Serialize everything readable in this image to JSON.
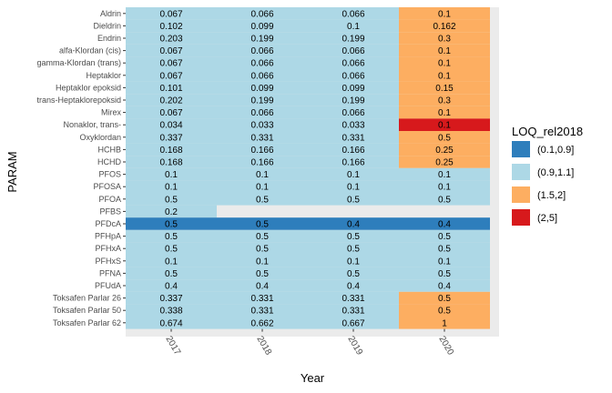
{
  "chart_data": {
    "type": "heatmap",
    "xlabel": "Year",
    "ylabel": "PARAM",
    "x": [
      "2017",
      "2018",
      "2019",
      "2020"
    ],
    "y": [
      "Aldrin",
      "Dieldrin",
      "Endrin",
      "alfa-Klordan (cis)",
      "gamma-Klordan (trans)",
      "Heptaklor",
      "Heptaklor epoksid",
      "trans-Heptaklorepoksid",
      "Mirex",
      "Nonaklor, trans-",
      "Oxyklordan",
      "HCHB",
      "HCHD",
      "PFOS",
      "PFOSA",
      "PFOA",
      "PFBS",
      "PFDcA",
      "PFHpA",
      "PFHxA",
      "PFHxS",
      "PFNA",
      "PFUdA",
      "Toksafen Parlar 26",
      "Toksafen Parlar 50",
      "Toksafen Parlar 62"
    ],
    "cells": [
      [
        "0.067",
        "0.066",
        "0.066",
        "0.1"
      ],
      [
        "0.102",
        "0.099",
        "0.1",
        "0.162"
      ],
      [
        "0.203",
        "0.199",
        "0.199",
        "0.3"
      ],
      [
        "0.067",
        "0.066",
        "0.066",
        "0.1"
      ],
      [
        "0.067",
        "0.066",
        "0.066",
        "0.1"
      ],
      [
        "0.067",
        "0.066",
        "0.066",
        "0.1"
      ],
      [
        "0.101",
        "0.099",
        "0.099",
        "0.15"
      ],
      [
        "0.202",
        "0.199",
        "0.199",
        "0.3"
      ],
      [
        "0.067",
        "0.066",
        "0.066",
        "0.1"
      ],
      [
        "0.034",
        "0.033",
        "0.033",
        "0.1"
      ],
      [
        "0.337",
        "0.331",
        "0.331",
        "0.5"
      ],
      [
        "0.168",
        "0.166",
        "0.166",
        "0.25"
      ],
      [
        "0.168",
        "0.166",
        "0.166",
        "0.25"
      ],
      [
        "0.1",
        "0.1",
        "0.1",
        "0.1"
      ],
      [
        "0.1",
        "0.1",
        "0.1",
        "0.1"
      ],
      [
        "0.5",
        "0.5",
        "0.5",
        "0.5"
      ],
      [
        "0.2",
        null,
        null,
        null
      ],
      [
        "0.5",
        "0.5",
        "0.4",
        "0.4"
      ],
      [
        "0.5",
        "0.5",
        "0.5",
        "0.5"
      ],
      [
        "0.5",
        "0.5",
        "0.5",
        "0.5"
      ],
      [
        "0.1",
        "0.1",
        "0.1",
        "0.1"
      ],
      [
        "0.5",
        "0.5",
        "0.5",
        "0.5"
      ],
      [
        "0.4",
        "0.4",
        "0.4",
        "0.4"
      ],
      [
        "0.337",
        "0.331",
        "0.331",
        "0.5"
      ],
      [
        "0.338",
        "0.331",
        "0.331",
        "0.5"
      ],
      [
        "0.674",
        "0.662",
        "0.667",
        "1"
      ]
    ],
    "categories_grid": [
      [
        "b",
        "b",
        "b",
        "c"
      ],
      [
        "b",
        "b",
        "b",
        "c"
      ],
      [
        "b",
        "b",
        "b",
        "c"
      ],
      [
        "b",
        "b",
        "b",
        "c"
      ],
      [
        "b",
        "b",
        "b",
        "c"
      ],
      [
        "b",
        "b",
        "b",
        "c"
      ],
      [
        "b",
        "b",
        "b",
        "c"
      ],
      [
        "b",
        "b",
        "b",
        "c"
      ],
      [
        "b",
        "b",
        "b",
        "c"
      ],
      [
        "b",
        "b",
        "b",
        "d"
      ],
      [
        "b",
        "b",
        "b",
        "c"
      ],
      [
        "b",
        "b",
        "b",
        "c"
      ],
      [
        "b",
        "b",
        "b",
        "c"
      ],
      [
        "b",
        "b",
        "b",
        "b"
      ],
      [
        "b",
        "b",
        "b",
        "b"
      ],
      [
        "b",
        "b",
        "b",
        "b"
      ],
      [
        "b",
        null,
        null,
        null
      ],
      [
        "a",
        "a",
        "a",
        "a"
      ],
      [
        "b",
        "b",
        "b",
        "b"
      ],
      [
        "b",
        "b",
        "b",
        "b"
      ],
      [
        "b",
        "b",
        "b",
        "b"
      ],
      [
        "b",
        "b",
        "b",
        "b"
      ],
      [
        "b",
        "b",
        "b",
        "b"
      ],
      [
        "b",
        "b",
        "b",
        "c"
      ],
      [
        "b",
        "b",
        "b",
        "c"
      ],
      [
        "b",
        "b",
        "b",
        "c"
      ]
    ],
    "legend": {
      "title": "LOQ_rel2018",
      "placement": "right",
      "items": [
        {
          "key": "a",
          "label": "(0.1,0.9]",
          "color": "#2e7ebc"
        },
        {
          "key": "b",
          "label": "(0.9,1.1]",
          "color": "#add8e6"
        },
        {
          "key": "c",
          "label": "(1.5,2]",
          "color": "#fdae61"
        },
        {
          "key": "d",
          "label": "(2,5]",
          "color": "#d7191c"
        }
      ]
    },
    "colors": {
      "panel_background": "#ebebeb",
      "missing": "#ebebeb"
    },
    "grid": true
  }
}
